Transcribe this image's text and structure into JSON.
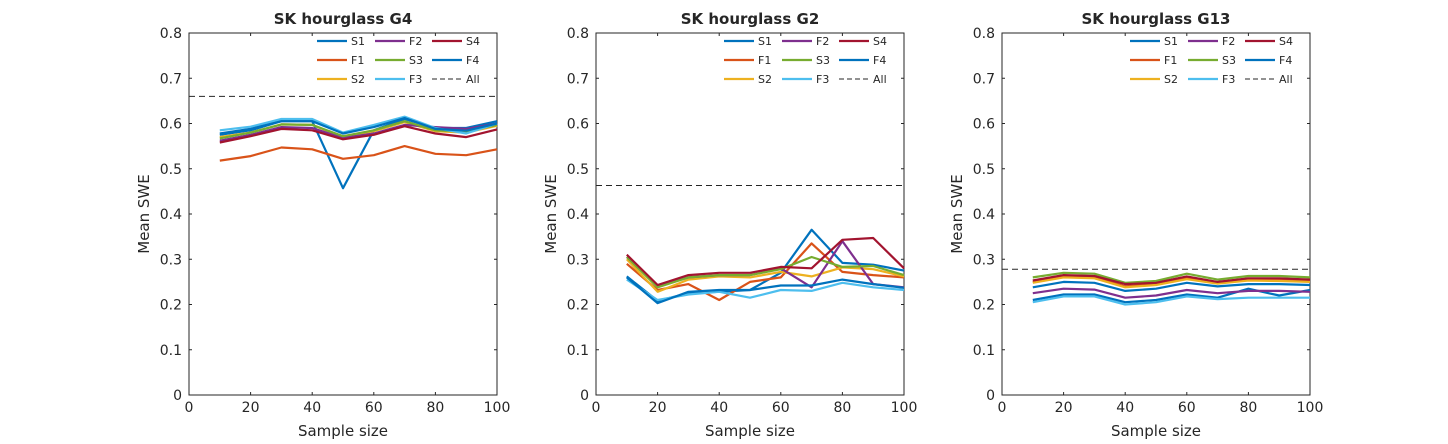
{
  "chart_data": [
    {
      "type": "line",
      "title": "SK hourglass G4",
      "xlabel": "Sample size",
      "ylabel": "Mean SWE",
      "xlim": [
        0,
        100
      ],
      "ylim": [
        0,
        0.8
      ],
      "xticks": [
        "0",
        "20",
        "40",
        "60",
        "80",
        "100"
      ],
      "yticks": [
        "0",
        "0.1",
        "0.2",
        "0.3",
        "0.4",
        "0.5",
        "0.6",
        "0.7",
        "0.8"
      ],
      "grid": false,
      "legend_position": "top-right",
      "x": [
        10,
        20,
        30,
        40,
        50,
        60,
        70,
        80,
        90,
        100
      ],
      "series": [
        {
          "name": "S1",
          "color": "#0072BD",
          "values": [
            0.575,
            0.585,
            0.605,
            0.605,
            0.457,
            0.585,
            0.61,
            0.59,
            0.59,
            0.605
          ]
        },
        {
          "name": "F1",
          "color": "#D95319",
          "values": [
            0.518,
            0.528,
            0.547,
            0.543,
            0.522,
            0.53,
            0.55,
            0.533,
            0.53,
            0.543
          ]
        },
        {
          "name": "S2",
          "color": "#EDB120",
          "values": [
            0.57,
            0.58,
            0.598,
            0.597,
            0.57,
            0.583,
            0.603,
            0.583,
            0.58,
            0.595
          ]
        },
        {
          "name": "F2",
          "color": "#7E2F8E",
          "values": [
            0.562,
            0.575,
            0.592,
            0.59,
            0.568,
            0.578,
            0.597,
            0.592,
            0.588,
            0.6
          ]
        },
        {
          "name": "S3",
          "color": "#77AC30",
          "values": [
            0.567,
            0.58,
            0.598,
            0.597,
            0.572,
            0.585,
            0.605,
            0.585,
            0.582,
            0.597
          ]
        },
        {
          "name": "F3",
          "color": "#4DBEEE",
          "values": [
            0.585,
            0.593,
            0.61,
            0.61,
            0.58,
            0.597,
            0.615,
            0.59,
            0.578,
            0.6
          ]
        },
        {
          "name": "S4",
          "color": "#A2142F",
          "values": [
            0.558,
            0.572,
            0.588,
            0.585,
            0.565,
            0.575,
            0.594,
            0.578,
            0.57,
            0.587
          ]
        },
        {
          "name": "F4",
          "color": "#0072BD",
          "values": [
            0.578,
            0.588,
            0.605,
            0.605,
            0.578,
            0.592,
            0.612,
            0.588,
            0.584,
            0.6
          ]
        }
      ],
      "reference": {
        "name": "All",
        "value": 0.66,
        "style": "dashed",
        "color": "#262626"
      }
    },
    {
      "type": "line",
      "title": "SK hourglass G2",
      "xlabel": "Sample size",
      "ylabel": "Mean SWE",
      "xlim": [
        0,
        100
      ],
      "ylim": [
        0,
        0.8
      ],
      "xticks": [
        "0",
        "20",
        "40",
        "60",
        "80",
        "100"
      ],
      "yticks": [
        "0",
        "0.1",
        "0.2",
        "0.3",
        "0.4",
        "0.5",
        "0.6",
        "0.7",
        "0.8"
      ],
      "grid": false,
      "legend_position": "top-right",
      "x": [
        10,
        20,
        30,
        40,
        50,
        60,
        70,
        80,
        90,
        100
      ],
      "series": [
        {
          "name": "S1",
          "color": "#0072BD",
          "values": [
            0.262,
            0.208,
            0.225,
            0.228,
            0.232,
            0.27,
            0.365,
            0.292,
            0.288,
            0.275
          ]
        },
        {
          "name": "F1",
          "color": "#D95319",
          "values": [
            0.29,
            0.232,
            0.245,
            0.21,
            0.25,
            0.26,
            0.335,
            0.272,
            0.265,
            0.26
          ]
        },
        {
          "name": "S2",
          "color": "#EDB120",
          "values": [
            0.3,
            0.228,
            0.255,
            0.262,
            0.26,
            0.272,
            0.262,
            0.282,
            0.278,
            0.262
          ]
        },
        {
          "name": "F2",
          "color": "#7E2F8E",
          "values": [
            0.305,
            0.24,
            0.26,
            0.265,
            0.265,
            0.28,
            0.238,
            0.34,
            0.245,
            0.238
          ]
        },
        {
          "name": "S3",
          "color": "#77AC30",
          "values": [
            0.305,
            0.238,
            0.26,
            0.265,
            0.265,
            0.278,
            0.305,
            0.283,
            0.285,
            0.265
          ]
        },
        {
          "name": "F3",
          "color": "#4DBEEE",
          "values": [
            0.255,
            0.21,
            0.222,
            0.228,
            0.215,
            0.232,
            0.23,
            0.248,
            0.238,
            0.232
          ]
        },
        {
          "name": "S4",
          "color": "#A2142F",
          "values": [
            0.31,
            0.243,
            0.265,
            0.27,
            0.27,
            0.283,
            0.28,
            0.343,
            0.347,
            0.28
          ]
        },
        {
          "name": "F4",
          "color": "#0072BD",
          "values": [
            0.26,
            0.203,
            0.228,
            0.232,
            0.232,
            0.242,
            0.242,
            0.255,
            0.245,
            0.237
          ]
        }
      ],
      "reference": {
        "name": "All",
        "value": 0.463,
        "style": "dashed",
        "color": "#262626"
      }
    },
    {
      "type": "line",
      "title": "SK hourglass G13",
      "xlabel": "Sample size",
      "ylabel": "Mean SWE",
      "xlim": [
        0,
        100
      ],
      "ylim": [
        0,
        0.8
      ],
      "xticks": [
        "0",
        "20",
        "40",
        "60",
        "80",
        "100"
      ],
      "yticks": [
        "0",
        "0.1",
        "0.2",
        "0.3",
        "0.4",
        "0.5",
        "0.6",
        "0.7",
        "0.8"
      ],
      "grid": false,
      "legend_position": "top-right",
      "x": [
        10,
        20,
        30,
        40,
        50,
        60,
        70,
        80,
        90,
        100
      ],
      "series": [
        {
          "name": "S1",
          "color": "#0072BD",
          "values": [
            0.21,
            0.222,
            0.222,
            0.205,
            0.21,
            0.222,
            0.215,
            0.235,
            0.22,
            0.232
          ]
        },
        {
          "name": "F1",
          "color": "#D95319",
          "values": [
            0.25,
            0.262,
            0.26,
            0.24,
            0.245,
            0.258,
            0.248,
            0.255,
            0.255,
            0.252
          ]
        },
        {
          "name": "S2",
          "color": "#EDB120",
          "values": [
            0.248,
            0.26,
            0.258,
            0.238,
            0.243,
            0.256,
            0.246,
            0.253,
            0.252,
            0.25
          ]
        },
        {
          "name": "F2",
          "color": "#7E2F8E",
          "values": [
            0.225,
            0.235,
            0.233,
            0.215,
            0.22,
            0.232,
            0.225,
            0.23,
            0.23,
            0.228
          ]
        },
        {
          "name": "S3",
          "color": "#77AC30",
          "values": [
            0.26,
            0.27,
            0.268,
            0.248,
            0.252,
            0.268,
            0.255,
            0.263,
            0.263,
            0.26
          ]
        },
        {
          "name": "F3",
          "color": "#4DBEEE",
          "values": [
            0.205,
            0.218,
            0.218,
            0.2,
            0.205,
            0.218,
            0.212,
            0.215,
            0.215,
            0.215
          ]
        },
        {
          "name": "S4",
          "color": "#A2142F",
          "values": [
            0.253,
            0.265,
            0.263,
            0.245,
            0.248,
            0.262,
            0.25,
            0.258,
            0.258,
            0.255
          ]
        },
        {
          "name": "F4",
          "color": "#0072BD",
          "values": [
            0.238,
            0.25,
            0.248,
            0.23,
            0.235,
            0.248,
            0.24,
            0.245,
            0.245,
            0.243
          ]
        }
      ],
      "reference": {
        "name": "All",
        "value": 0.278,
        "style": "dashed",
        "color": "#262626"
      }
    }
  ]
}
